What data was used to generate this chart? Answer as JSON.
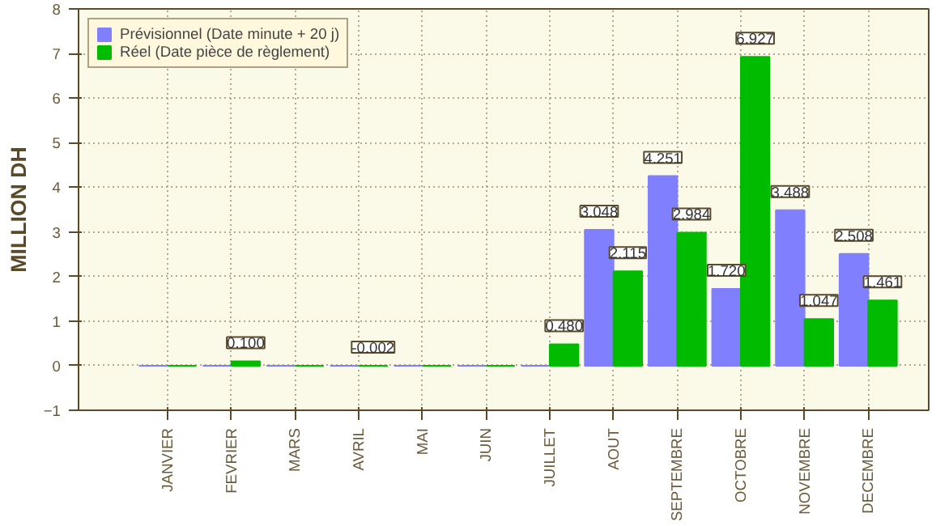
{
  "chart_data": {
    "type": "bar",
    "ylabel": "MILLION DH",
    "categories": [
      "JANVIER",
      "FEVRIER",
      "MARS",
      "AVRIL",
      "MAI",
      "JUIN",
      "JUILLET",
      "AOUT",
      "SEPTEMBRE",
      "OCTOBRE",
      "NOVEMBRE",
      "DECEMBRE"
    ],
    "series": [
      {
        "name": "Prévisionnel (Date minute + 20 j)",
        "color": "#8080ff",
        "values": [
          0,
          0,
          0,
          0,
          0,
          0,
          0,
          3.048,
          4.251,
          1.72,
          3.488,
          2.508
        ],
        "value_labels": [
          null,
          null,
          null,
          null,
          null,
          null,
          null,
          "3.048",
          "4.251",
          "1.720",
          "3.488",
          "2.508"
        ]
      },
      {
        "name": "Réel (Date pièce de règlement)",
        "color": "#00bb00",
        "values": [
          0,
          0.1,
          0,
          -0.002,
          0,
          0,
          0.48,
          2.115,
          2.984,
          6.927,
          1.047,
          1.461
        ],
        "value_labels": [
          null,
          "0.100",
          null,
          "-0.002",
          null,
          null,
          "0.480",
          "2.115",
          "2.984",
          "6.927",
          "1.047",
          "1.461"
        ]
      }
    ],
    "ylim": [
      -1,
      8
    ],
    "yticks": [
      -1,
      0,
      1,
      2,
      3,
      4,
      5,
      6,
      7,
      8
    ],
    "grid": true,
    "legend": "top left"
  }
}
